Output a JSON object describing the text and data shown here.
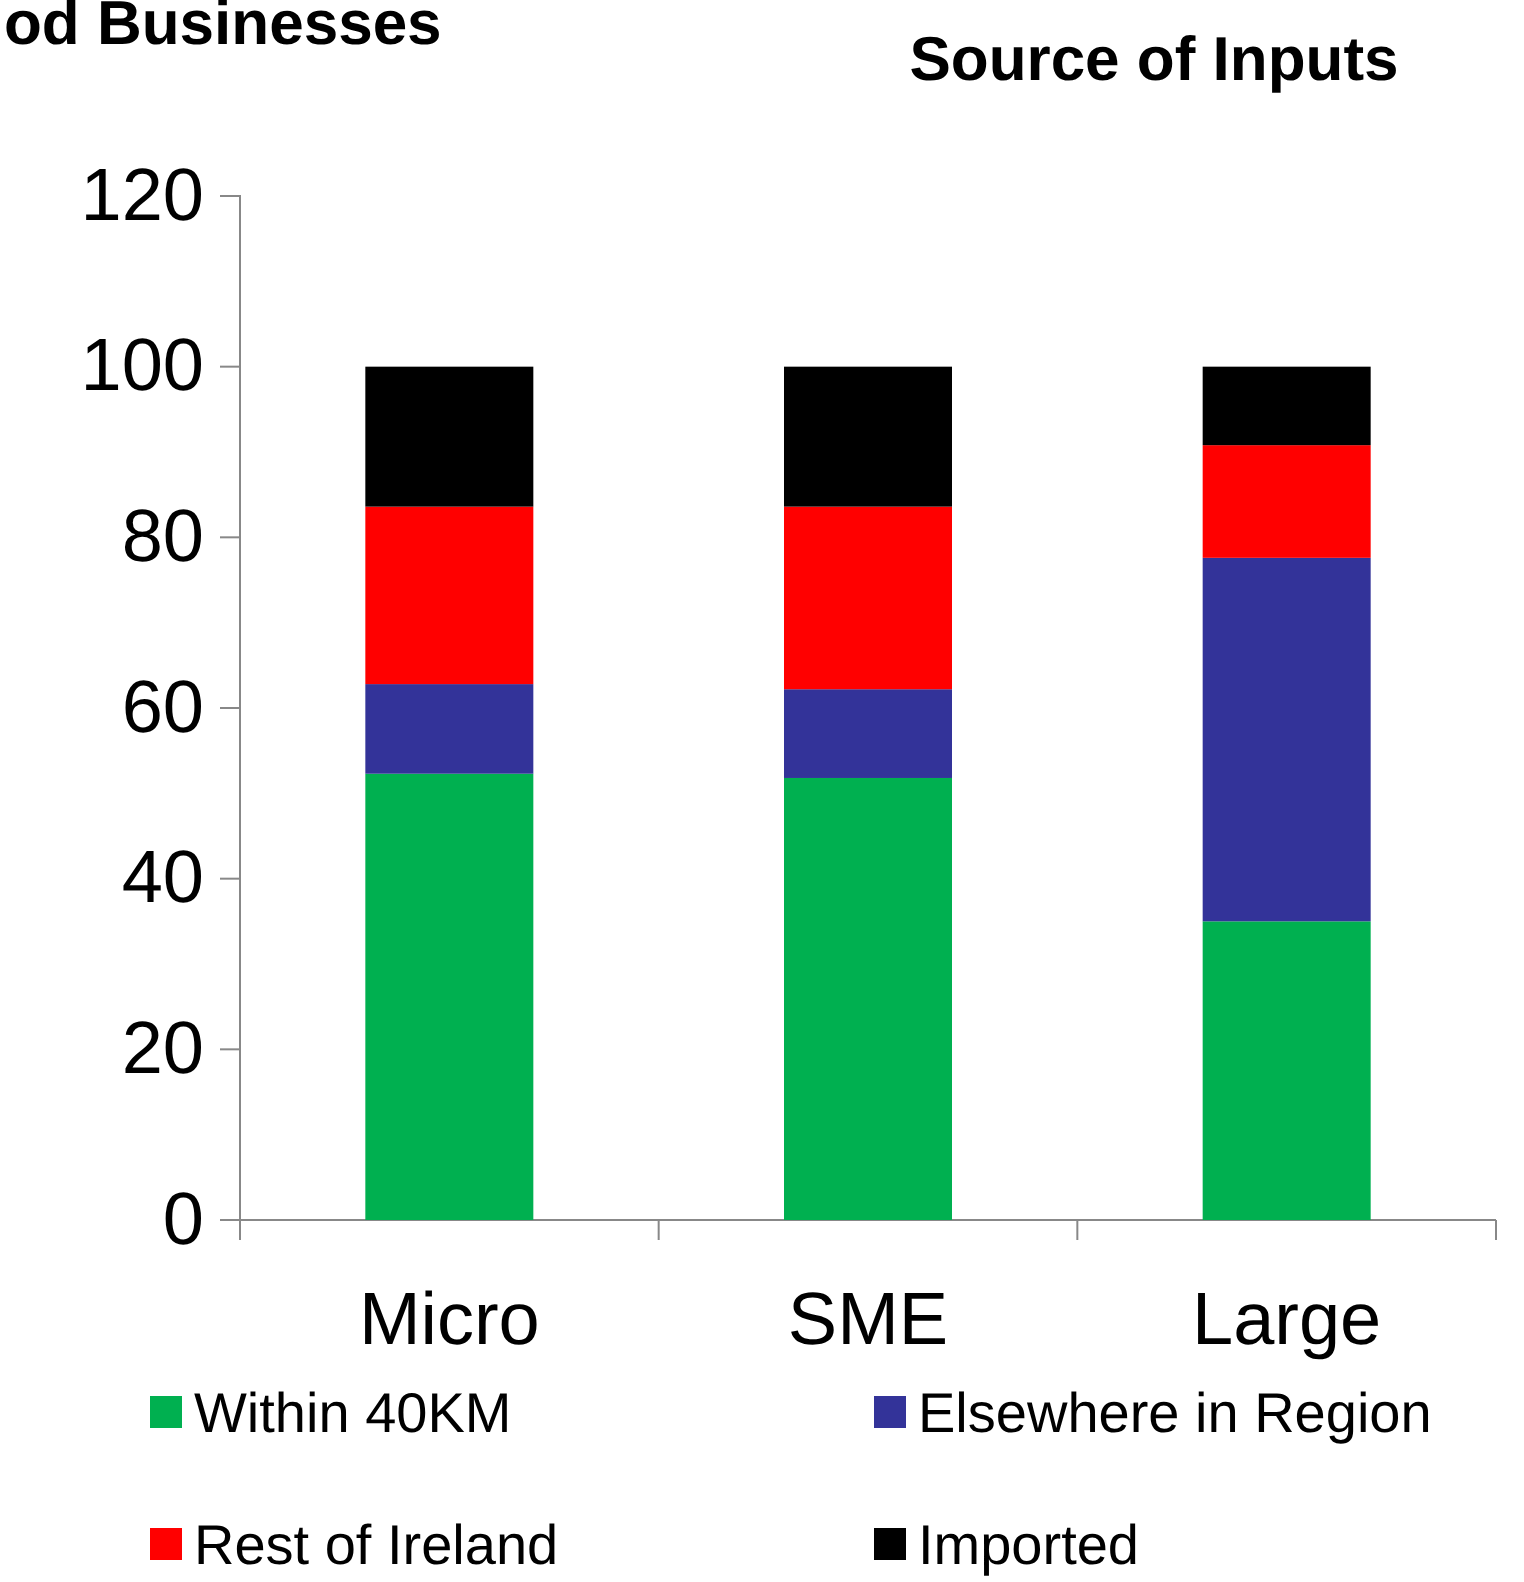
{
  "chart_data": {
    "type": "bar",
    "title": "od Businesses",
    "subtitle": "Source of Inputs",
    "categories": [
      "Micro",
      "SME",
      "Large"
    ],
    "stacked": true,
    "series": [
      {
        "name": "Within 40KM",
        "color": "#00b050",
        "values": [
          52.3,
          51.8,
          35.0
        ]
      },
      {
        "name": "Elsewhere in Region",
        "color": "#333399",
        "values": [
          10.5,
          10.4,
          42.6
        ]
      },
      {
        "name": "Rest of Ireland",
        "color": "#ff0000",
        "values": [
          20.8,
          21.4,
          13.2
        ]
      },
      {
        "name": "Imported",
        "color": "#000000",
        "values": [
          16.4,
          16.4,
          9.2
        ]
      }
    ],
    "ylim": [
      0,
      120
    ],
    "yticks": [
      0,
      20,
      40,
      60,
      80,
      100,
      120
    ],
    "grid": false,
    "legend": "bottom"
  }
}
